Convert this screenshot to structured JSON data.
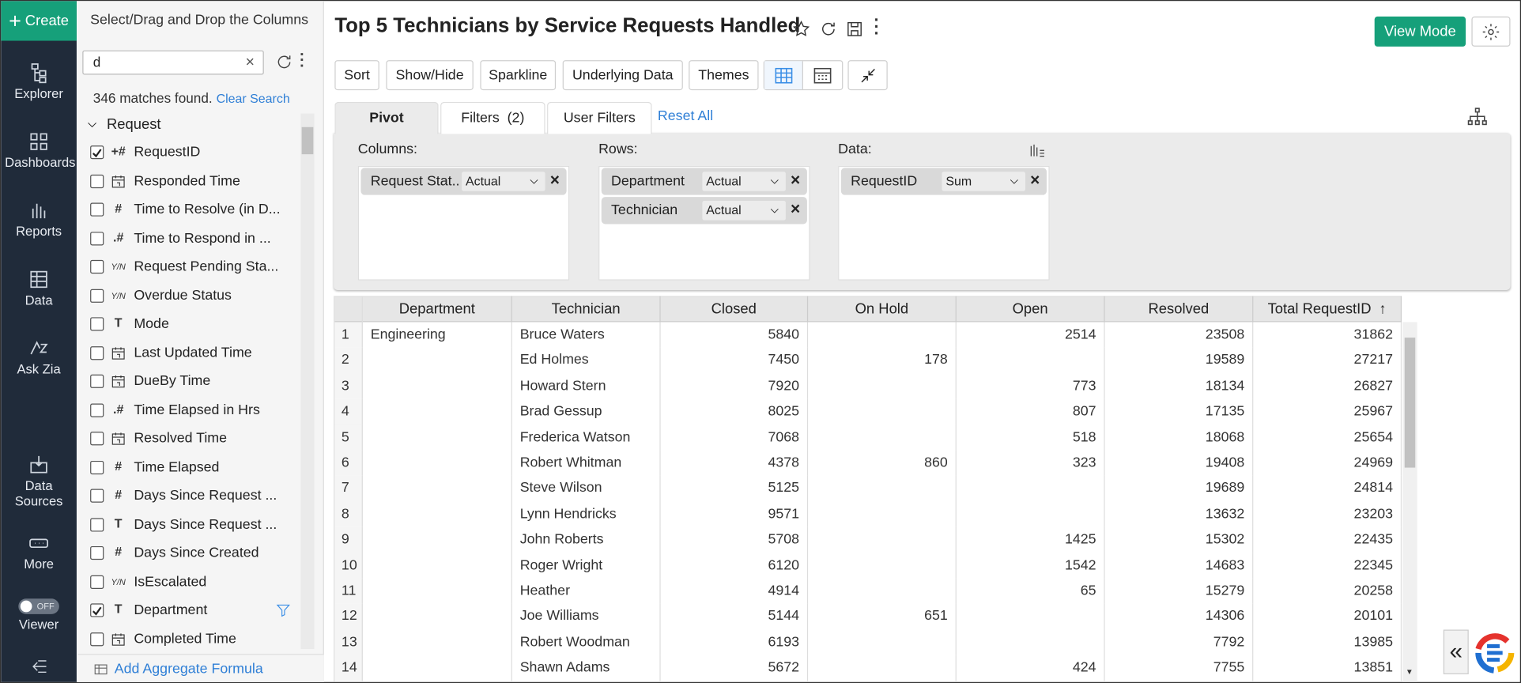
{
  "nav": {
    "create": "Create",
    "items": [
      "Explorer",
      "Dashboards",
      "Reports",
      "Data",
      "Ask Zia",
      "Data Sources",
      "More"
    ],
    "viewer": "Viewer",
    "toggle": "OFF"
  },
  "columns_panel": {
    "title": "Select/Drag and Drop the Columns",
    "search": "d",
    "matches": "346 matches found.",
    "clear": "Clear Search",
    "group": "Request",
    "fields": [
      {
        "label": "RequestID",
        "icon": "+#",
        "checked": true
      },
      {
        "label": "Responded Time",
        "checked": false
      },
      {
        "label": "Time to Resolve (in D...",
        "icon": "#",
        "checked": false
      },
      {
        "label": "Time to Respond in ...",
        "icon": ".#",
        "checked": false
      },
      {
        "label": "Request Pending Sta...",
        "icon": "Y/N",
        "checked": false
      },
      {
        "label": "Overdue Status",
        "icon": "Y/N",
        "checked": false
      },
      {
        "label": "Mode",
        "icon": "T",
        "checked": false
      },
      {
        "label": "Last Updated Time",
        "checked": false
      },
      {
        "label": "DueBy Time",
        "checked": false
      },
      {
        "label": "Time Elapsed in Hrs",
        "icon": ".#",
        "checked": false
      },
      {
        "label": "Resolved Time",
        "checked": false
      },
      {
        "label": "Time Elapsed",
        "icon": "#",
        "checked": false
      },
      {
        "label": "Days Since Request ...",
        "icon": "#",
        "checked": false
      },
      {
        "label": "Days Since Request ...",
        "icon": "T",
        "checked": false
      },
      {
        "label": "Days Since Created",
        "icon": "#",
        "checked": false
      },
      {
        "label": "IsEscalated",
        "icon": "Y/N",
        "checked": false
      },
      {
        "label": "Department",
        "icon": "T",
        "checked": true,
        "filtered": true
      },
      {
        "label": "Completed Time",
        "checked": false
      }
    ],
    "footer": "Add Aggregate Formula"
  },
  "header": {
    "title": "Top 5 Technicians by Service Requests Handled",
    "view_mode": "View Mode"
  },
  "toolbar": [
    "Sort",
    "Show/Hide",
    "Sparkline",
    "Underlying Data",
    "Themes"
  ],
  "tabs": {
    "items": [
      "Pivot",
      "Filters  (2)",
      "User Filters"
    ],
    "reset": "Reset All"
  },
  "shelves": [
    {
      "label": "Columns:",
      "chips": [
        {
          "field": "Request Stat...",
          "agg": "Actual"
        }
      ]
    },
    {
      "label": "Rows:",
      "chips": [
        {
          "field": "Department",
          "agg": "Actual"
        },
        {
          "field": "Technician",
          "agg": "Actual"
        }
      ]
    },
    {
      "label": "Data:",
      "chips": [
        {
          "field": "RequestID",
          "agg": "Sum"
        }
      ]
    }
  ],
  "table": {
    "columns": [
      "Department",
      "Technician",
      "Closed",
      "On Hold",
      "Open",
      "Resolved",
      "Total RequestID"
    ],
    "rows": [
      [
        1,
        "Engineering",
        "Bruce Waters",
        5840,
        null,
        2514,
        23508,
        31862
      ],
      [
        2,
        null,
        "Ed Holmes",
        7450,
        178,
        null,
        19589,
        27217
      ],
      [
        3,
        null,
        "Howard Stern",
        7920,
        null,
        773,
        18134,
        26827
      ],
      [
        4,
        null,
        "Brad Gessup",
        8025,
        null,
        807,
        17135,
        25967
      ],
      [
        5,
        null,
        "Frederica Watson",
        7068,
        null,
        518,
        18068,
        25654
      ],
      [
        6,
        null,
        "Robert Whitman",
        4378,
        860,
        323,
        19408,
        24969
      ],
      [
        7,
        null,
        "Steve Wilson",
        5125,
        null,
        null,
        19689,
        24814
      ],
      [
        8,
        null,
        "Lynn Hendricks",
        9571,
        null,
        null,
        13632,
        23203
      ],
      [
        9,
        null,
        "John Roberts",
        5708,
        null,
        1425,
        15302,
        22435
      ],
      [
        10,
        null,
        "Roger Wright",
        6120,
        null,
        1542,
        14683,
        22345
      ],
      [
        11,
        null,
        "Heather",
        4914,
        null,
        65,
        15279,
        20258
      ],
      [
        12,
        null,
        "Joe Williams",
        5144,
        651,
        null,
        14306,
        20101
      ],
      [
        13,
        null,
        "Robert Woodman",
        6193,
        null,
        null,
        7792,
        13985
      ],
      [
        14,
        null,
        "Shawn Adams",
        5672,
        null,
        424,
        7755,
        13851
      ]
    ]
  }
}
